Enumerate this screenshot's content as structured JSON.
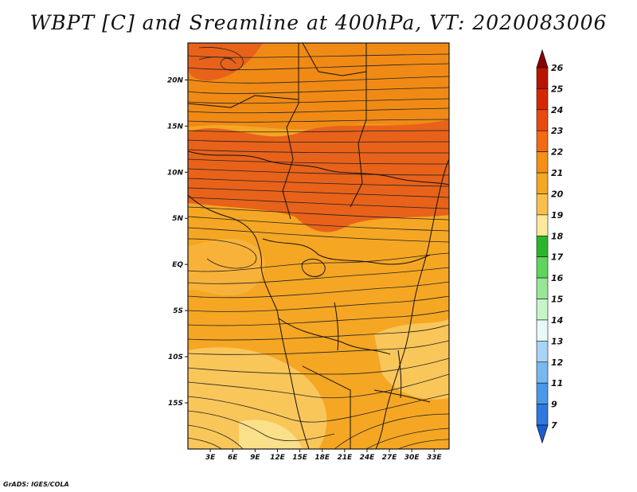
{
  "title": "WBPT [C] and Sreamline at 400hPa, VT: 2020083006",
  "credit": "GrADS: IGES/COLA",
  "map": {
    "lon_range": [
      0,
      35
    ],
    "lat_range": [
      -20,
      24
    ],
    "x_ticks": [
      {
        "value": 3,
        "label": "3E"
      },
      {
        "value": 6,
        "label": "6E"
      },
      {
        "value": 9,
        "label": "9E"
      },
      {
        "value": 12,
        "label": "12E"
      },
      {
        "value": 15,
        "label": "15E"
      },
      {
        "value": 18,
        "label": "18E"
      },
      {
        "value": 21,
        "label": "21E"
      },
      {
        "value": 24,
        "label": "24E"
      },
      {
        "value": 27,
        "label": "27E"
      },
      {
        "value": 30,
        "label": "30E"
      },
      {
        "value": 33,
        "label": "33E"
      }
    ],
    "y_ticks": [
      {
        "value": 20,
        "label": "20N"
      },
      {
        "value": 15,
        "label": "15N"
      },
      {
        "value": 10,
        "label": "10N"
      },
      {
        "value": 5,
        "label": "5N"
      },
      {
        "value": 0,
        "label": "EQ"
      },
      {
        "value": -5,
        "label": "5S"
      },
      {
        "value": -10,
        "label": "10S"
      },
      {
        "value": -15,
        "label": "15S"
      }
    ],
    "background_color": "#F5A623"
  },
  "colorbar": {
    "levels": [
      "26",
      "25",
      "24",
      "23",
      "22",
      "21",
      "20",
      "19",
      "18",
      "17",
      "16",
      "15",
      "14",
      "13",
      "12",
      "11",
      "9",
      "7"
    ],
    "colors": [
      "#8B0000",
      "#B81400",
      "#D62800",
      "#E84A10",
      "#F46A10",
      "#F58F15",
      "#F5A623",
      "#F8C04A",
      "#FBE89A",
      "#2BB52B",
      "#5CD65C",
      "#98E698",
      "#C8F5C8",
      "#E8FAF8",
      "#A8D4F8",
      "#78B8F0",
      "#4A98E8",
      "#2E78DE",
      "#1A5ED6"
    ]
  }
}
